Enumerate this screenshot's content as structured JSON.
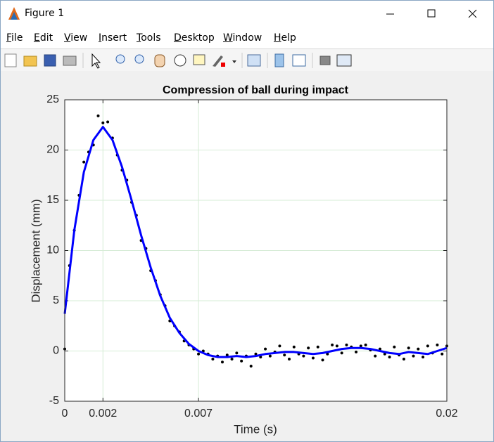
{
  "window": {
    "title": "Figure 1"
  },
  "menu": [
    "File",
    "Edit",
    "View",
    "Insert",
    "Tools",
    "Desktop",
    "Window",
    "Help"
  ],
  "chart_data": {
    "type": "line",
    "title": "Compression of ball during impact",
    "x_label": "Time (s)",
    "y_label": "Displacement (mm)",
    "xlim": [
      0,
      0.02
    ],
    "xticks": [
      0,
      0.002,
      0.007,
      0.02
    ],
    "ylim": [
      -5,
      25
    ],
    "yticks": [
      -5,
      0,
      5,
      10,
      15,
      20,
      25
    ],
    "grid": true,
    "grid_color": "#d6ecd6",
    "series": [
      {
        "mode": "markers",
        "color": "#000000",
        "x": [
          0,
          0.00025,
          0.0005,
          0.00075,
          0.001,
          0.00125,
          0.0015,
          0.00175,
          0.002,
          0.00225,
          0.0025,
          0.00275,
          0.003,
          0.00325,
          0.0035,
          0.00375,
          0.004,
          0.00425,
          0.0045,
          0.00475,
          0.005,
          0.00525,
          0.0055,
          0.00575,
          0.006,
          0.00625,
          0.0065,
          0.00675,
          0.007,
          0.00725,
          0.0075,
          0.00775,
          0.008,
          0.00825,
          0.0085,
          0.00875,
          0.009,
          0.00925,
          0.0095,
          0.00975,
          0.01,
          0.01025,
          0.0105,
          0.01075,
          0.011,
          0.01125,
          0.0115,
          0.01175,
          0.012,
          0.01225,
          0.0125,
          0.01275,
          0.013,
          0.01325,
          0.0135,
          0.01375,
          0.014,
          0.01425,
          0.0145,
          0.01475,
          0.015,
          0.01525,
          0.0155,
          0.01575,
          0.016,
          0.01625,
          0.0165,
          0.01675,
          0.017,
          0.01725,
          0.0175,
          0.01775,
          0.018,
          0.01825,
          0.0185,
          0.01875,
          0.019,
          0.01925,
          0.0195,
          0.01975,
          0.02
        ],
        "values": [
          0.2,
          8.5,
          12.0,
          15.5,
          18.8,
          19.8,
          20.5,
          23.4,
          22.7,
          22.8,
          21.2,
          19.5,
          18.0,
          17.0,
          14.8,
          13.5,
          11.0,
          10.2,
          8.0,
          7.0,
          5.6,
          4.5,
          3.0,
          2.5,
          1.9,
          1.0,
          0.6,
          0.2,
          -0.3,
          0.0,
          -0.3,
          -0.8,
          -0.5,
          -1.1,
          -0.4,
          -0.8,
          -0.2,
          -1.0,
          -0.5,
          -1.5,
          -0.3,
          -0.6,
          0.2,
          -0.5,
          -0.1,
          0.5,
          -0.4,
          -0.8,
          0.4,
          -0.3,
          -0.5,
          0.3,
          -0.7,
          0.4,
          -0.9,
          -0.3,
          0.6,
          0.5,
          -0.2,
          0.6,
          0.4,
          -0.1,
          0.5,
          0.6,
          0.1,
          -0.5,
          0.2,
          -0.3,
          -0.6,
          0.4,
          -0.4,
          -0.8,
          0.3,
          -0.5,
          0.2,
          -0.6,
          0.5,
          -0.2,
          0.6,
          -0.3,
          0.5
        ]
      },
      {
        "mode": "line",
        "color": "#0000ff",
        "line_width": 3,
        "x": [
          0,
          0.0005,
          0.001,
          0.0015,
          0.002,
          0.0025,
          0.003,
          0.0035,
          0.004,
          0.0045,
          0.005,
          0.0055,
          0.006,
          0.0065,
          0.007,
          0.0075,
          0.008,
          0.0085,
          0.009,
          0.0095,
          0.01,
          0.0105,
          0.011,
          0.0115,
          0.012,
          0.0125,
          0.013,
          0.0135,
          0.014,
          0.0145,
          0.015,
          0.0155,
          0.016,
          0.0165,
          0.017,
          0.0175,
          0.018,
          0.0185,
          0.019,
          0.0195,
          0.02
        ],
        "values": [
          3.7,
          12.0,
          17.8,
          21.0,
          22.3,
          21.0,
          18.3,
          15.0,
          11.5,
          8.3,
          5.5,
          3.3,
          1.8,
          0.7,
          0.0,
          -0.4,
          -0.6,
          -0.6,
          -0.5,
          -0.6,
          -0.5,
          -0.3,
          -0.2,
          -0.1,
          -0.1,
          -0.2,
          -0.3,
          -0.2,
          0.0,
          0.2,
          0.3,
          0.3,
          0.2,
          0.0,
          -0.2,
          -0.3,
          -0.1,
          -0.2,
          -0.3,
          0.0,
          0.3
        ]
      }
    ]
  }
}
